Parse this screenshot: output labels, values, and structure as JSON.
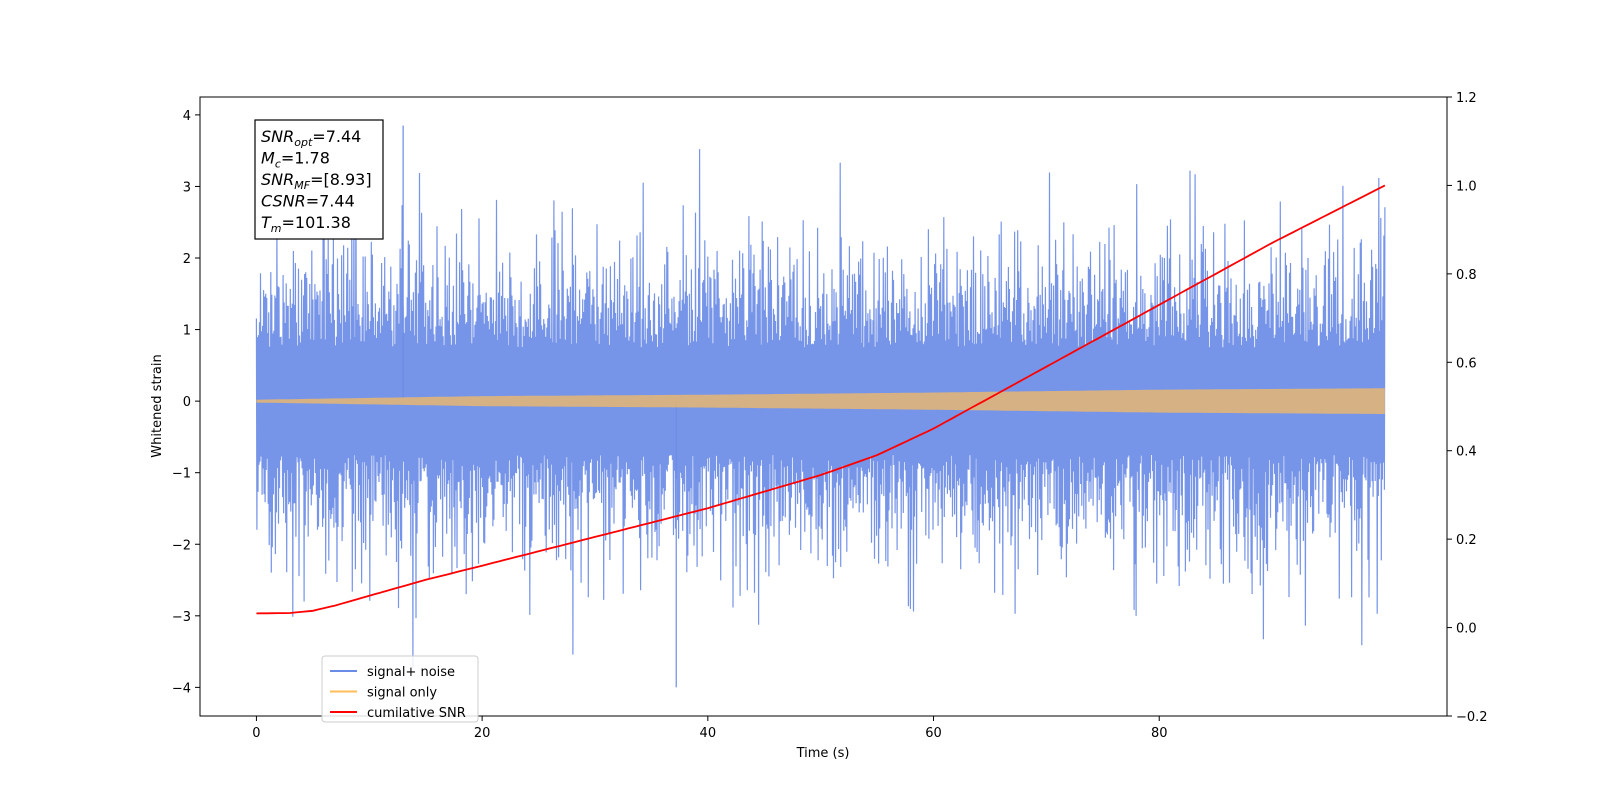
{
  "chart_data": {
    "type": "line",
    "title": "",
    "xlabel": "Time (s)",
    "ylabel": "Whitened strain",
    "y2label": "",
    "xlim": [
      -5,
      105.5
    ],
    "ylim": [
      -4.4,
      4.25
    ],
    "y2lim": [
      -0.2,
      1.2
    ],
    "x_ticks": [
      0,
      20,
      40,
      60,
      80
    ],
    "y_ticks": [
      -4,
      -3,
      -2,
      -1,
      0,
      1,
      2,
      3,
      4
    ],
    "y2_ticks": [
      "-0.2",
      "0.0",
      "0.2",
      "0.4",
      "0.6",
      "0.8",
      "1.0",
      "1.2"
    ],
    "grid": false,
    "legend_position": "lower-left",
    "series": [
      {
        "name": "signal+ noise",
        "axis": "left",
        "color": "#6b8ce6",
        "kind": "noise-band",
        "x_range": [
          0,
          100
        ],
        "typical_amplitude": 1.5,
        "peak_max": 3.85,
        "peak_min": -4.0
      },
      {
        "name": "signal only",
        "axis": "left",
        "color": "#ffbe5a",
        "kind": "chirp-band",
        "x_range": [
          0,
          100
        ],
        "envelope": [
          [
            0,
            0.02
          ],
          [
            20,
            0.07
          ],
          [
            40,
            0.09
          ],
          [
            60,
            0.12
          ],
          [
            80,
            0.16
          ],
          [
            100,
            0.18
          ]
        ]
      },
      {
        "name": "cumilative SNR",
        "axis": "right",
        "color": "#ff0000",
        "kind": "line",
        "points": [
          [
            0,
            0.032
          ],
          [
            3,
            0.033
          ],
          [
            5,
            0.038
          ],
          [
            7,
            0.05
          ],
          [
            10,
            0.072
          ],
          [
            15,
            0.108
          ],
          [
            20,
            0.14
          ],
          [
            30,
            0.205
          ],
          [
            40,
            0.27
          ],
          [
            50,
            0.345
          ],
          [
            55,
            0.39
          ],
          [
            60,
            0.45
          ],
          [
            65,
            0.52
          ],
          [
            70,
            0.59
          ],
          [
            80,
            0.73
          ],
          [
            90,
            0.87
          ],
          [
            100,
            1.0
          ]
        ]
      }
    ],
    "annotation": [
      {
        "base": "SNR",
        "sub": "opt",
        "value": "=7.44"
      },
      {
        "base": "M",
        "sub": "c",
        "value": "=1.78"
      },
      {
        "base": "SNR",
        "sub": "MF",
        "value": "=[8.93]"
      },
      {
        "base": "CSNR",
        "sub": "",
        "value": "=7.44"
      },
      {
        "base": "T",
        "sub": "m",
        "value": "=101.38"
      }
    ]
  }
}
